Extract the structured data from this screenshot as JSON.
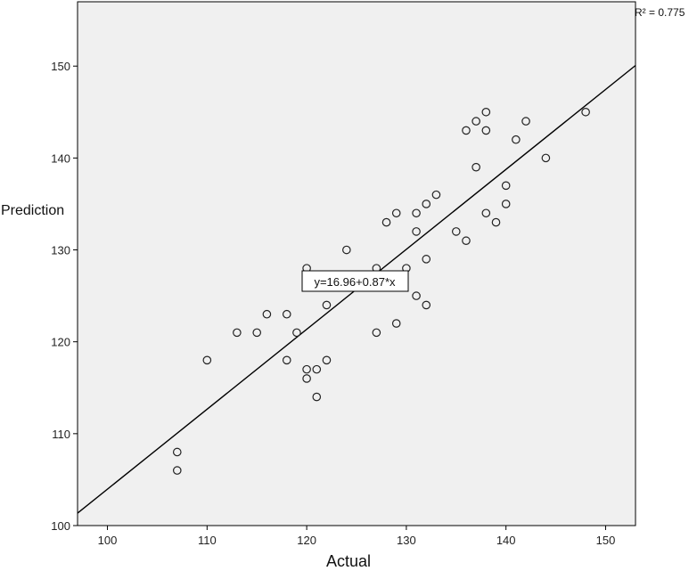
{
  "chart_data": {
    "type": "scatter",
    "xlabel": "Actual",
    "ylabel": "Prediction",
    "xlim": [
      97,
      153
    ],
    "ylim": [
      100,
      157
    ],
    "x_ticks": [
      100,
      110,
      120,
      130,
      140,
      150
    ],
    "y_ticks": [
      100,
      110,
      120,
      130,
      140,
      150
    ],
    "x_tick_labels": [
      "100",
      "110",
      "120",
      "130",
      "140",
      "150"
    ],
    "y_tick_labels": [
      "100",
      "110",
      "120",
      "130",
      "140",
      "150"
    ],
    "r_squared_label": "R² = 0.775",
    "fit_equation_label": "y=16.96+0.87*x",
    "fit_line": {
      "intercept": 16.96,
      "slope": 0.87
    },
    "plot_background": "#f0f0f0",
    "marker_color": "#222222",
    "grid": false,
    "points": [
      {
        "x": 107,
        "y": 108
      },
      {
        "x": 107,
        "y": 106
      },
      {
        "x": 110,
        "y": 118
      },
      {
        "x": 113,
        "y": 121
      },
      {
        "x": 115,
        "y": 121
      },
      {
        "x": 116,
        "y": 123
      },
      {
        "x": 118,
        "y": 123
      },
      {
        "x": 118,
        "y": 118
      },
      {
        "x": 119,
        "y": 121
      },
      {
        "x": 120,
        "y": 128
      },
      {
        "x": 120,
        "y": 117
      },
      {
        "x": 120,
        "y": 116
      },
      {
        "x": 121,
        "y": 117
      },
      {
        "x": 121,
        "y": 114
      },
      {
        "x": 122,
        "y": 124
      },
      {
        "x": 122,
        "y": 118
      },
      {
        "x": 124,
        "y": 130
      },
      {
        "x": 126,
        "y": 127
      },
      {
        "x": 127,
        "y": 128
      },
      {
        "x": 127,
        "y": 121
      },
      {
        "x": 128,
        "y": 133
      },
      {
        "x": 129,
        "y": 134
      },
      {
        "x": 129,
        "y": 122
      },
      {
        "x": 130,
        "y": 128
      },
      {
        "x": 131,
        "y": 134
      },
      {
        "x": 131,
        "y": 132
      },
      {
        "x": 131,
        "y": 125
      },
      {
        "x": 132,
        "y": 135
      },
      {
        "x": 132,
        "y": 129
      },
      {
        "x": 132,
        "y": 124
      },
      {
        "x": 133,
        "y": 136
      },
      {
        "x": 135,
        "y": 132
      },
      {
        "x": 136,
        "y": 143
      },
      {
        "x": 136,
        "y": 131
      },
      {
        "x": 137,
        "y": 144
      },
      {
        "x": 137,
        "y": 139
      },
      {
        "x": 138,
        "y": 145
      },
      {
        "x": 138,
        "y": 143
      },
      {
        "x": 138,
        "y": 134
      },
      {
        "x": 139,
        "y": 133
      },
      {
        "x": 140,
        "y": 137
      },
      {
        "x": 140,
        "y": 135
      },
      {
        "x": 141,
        "y": 142
      },
      {
        "x": 142,
        "y": 144
      },
      {
        "x": 144,
        "y": 140
      },
      {
        "x": 148,
        "y": 145
      }
    ]
  }
}
